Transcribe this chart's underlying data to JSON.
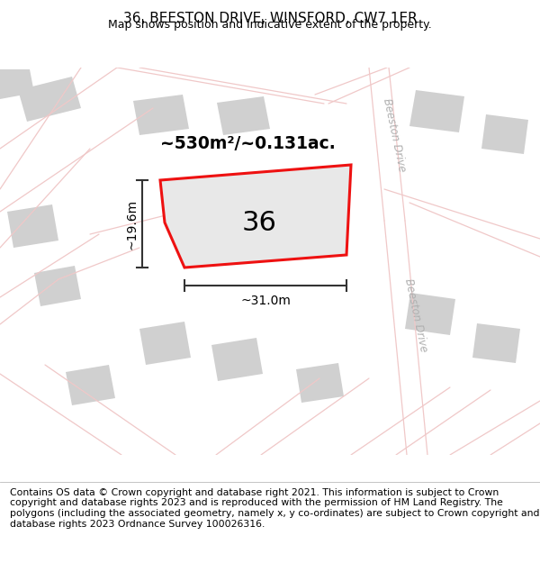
{
  "title": "36, BEESTON DRIVE, WINSFORD, CW7 1ER",
  "subtitle": "Map shows position and indicative extent of the property.",
  "footer": "Contains OS data © Crown copyright and database right 2021. This information is subject to Crown copyright and database rights 2023 and is reproduced with the permission of HM Land Registry. The polygons (including the associated geometry, namely x, y co-ordinates) are subject to Crown copyright and database rights 2023 Ordnance Survey 100026316.",
  "map_bg": "#f0efee",
  "plot_color": "#ee1111",
  "plot_fill": "#e8e8e8",
  "plot_label": "36",
  "area_text": "~530m²/~0.131ac.",
  "width_text": "~31.0m",
  "height_text": "~19.6m",
  "road_label": "Beeston Drive",
  "road_color": "#f0c8c8",
  "building_color": "#d0d0d0",
  "dim_line_color": "#333333",
  "title_fontsize": 11,
  "subtitle_fontsize": 9,
  "footer_fontsize": 7.8,
  "label_fontsize": 22,
  "area_fontsize": 13.5,
  "dim_fontsize": 10
}
